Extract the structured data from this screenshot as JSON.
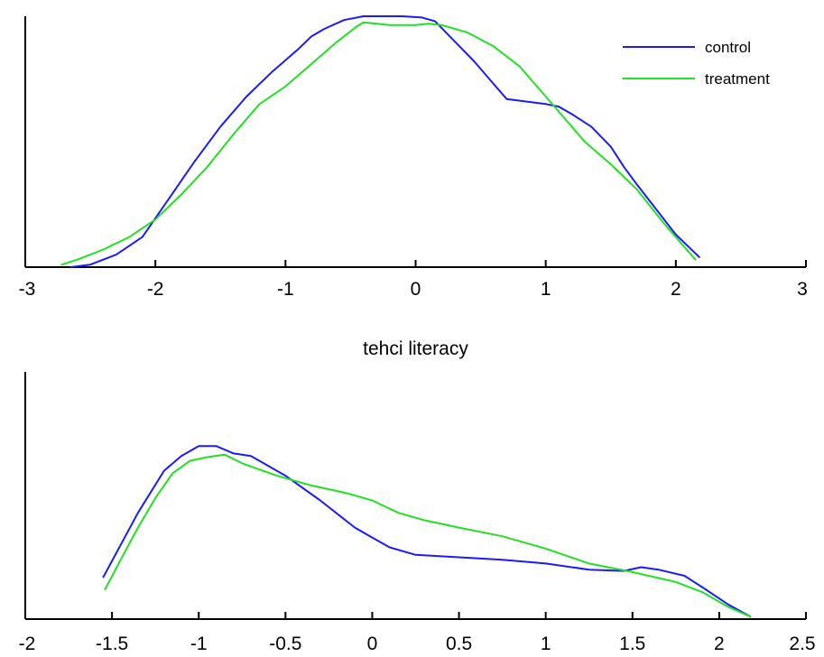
{
  "colors": {
    "control": "#1a1aff",
    "treatment": "#22e022"
  },
  "chart_data": [
    {
      "type": "line",
      "title": "",
      "xlabel": "",
      "ylabel": "",
      "xlim": [
        -3,
        3
      ],
      "ylim": [
        0,
        1
      ],
      "xticks": [
        "-3",
        "-2",
        "-1",
        "0",
        "1",
        "2",
        "3"
      ],
      "grid": false,
      "legend": {
        "position": "top-right",
        "entries": [
          "control",
          "treatment"
        ]
      },
      "series": [
        {
          "name": "control",
          "x": [
            -2.65,
            -2.5,
            -2.3,
            -2.1,
            -1.9,
            -1.7,
            -1.5,
            -1.3,
            -1.1,
            -0.9,
            -0.8,
            -0.7,
            -0.55,
            -0.4,
            -0.3,
            -0.1,
            0.05,
            0.15,
            0.3,
            0.45,
            0.6,
            0.7,
            0.85,
            1.0,
            1.1,
            1.2,
            1.35,
            1.5,
            1.6,
            1.7,
            1.85,
            2.0,
            2.1,
            2.18
          ],
          "y": [
            0.0,
            0.01,
            0.05,
            0.12,
            0.27,
            0.42,
            0.56,
            0.68,
            0.78,
            0.87,
            0.92,
            0.95,
            0.985,
            1.0,
            1.0,
            1.0,
            0.995,
            0.98,
            0.9,
            0.82,
            0.73,
            0.67,
            0.66,
            0.65,
            0.64,
            0.61,
            0.56,
            0.48,
            0.4,
            0.33,
            0.23,
            0.13,
            0.08,
            0.04
          ]
        },
        {
          "name": "treatment",
          "x": [
            -2.72,
            -2.6,
            -2.4,
            -2.2,
            -2.0,
            -1.8,
            -1.6,
            -1.4,
            -1.2,
            -1.0,
            -0.8,
            -0.6,
            -0.45,
            -0.4,
            -0.3,
            -0.2,
            0.0,
            0.1,
            0.2,
            0.4,
            0.6,
            0.8,
            0.95,
            1.1,
            1.3,
            1.5,
            1.7,
            1.9,
            2.05,
            2.15
          ],
          "y": [
            0.01,
            0.03,
            0.07,
            0.12,
            0.19,
            0.29,
            0.4,
            0.53,
            0.65,
            0.72,
            0.81,
            0.9,
            0.96,
            0.975,
            0.97,
            0.965,
            0.965,
            0.97,
            0.965,
            0.935,
            0.88,
            0.8,
            0.71,
            0.62,
            0.5,
            0.41,
            0.31,
            0.18,
            0.09,
            0.03
          ]
        }
      ]
    },
    {
      "type": "line",
      "title": "tehci literacy",
      "xlabel": "",
      "ylabel": "",
      "xlim": [
        -2,
        2.5
      ],
      "ylim": [
        0,
        1
      ],
      "xticks": [
        "-2",
        "-1.5",
        "-1",
        "-0.5",
        "0",
        "0.5",
        "1",
        "1.5",
        "2",
        "2.5"
      ],
      "grid": false,
      "legend": null,
      "series": [
        {
          "name": "control",
          "x": [
            -1.55,
            -1.45,
            -1.35,
            -1.2,
            -1.1,
            -1.0,
            -0.9,
            -0.8,
            -0.7,
            -0.5,
            -0.3,
            -0.1,
            0.0,
            0.1,
            0.25,
            0.5,
            0.75,
            1.0,
            1.25,
            1.45,
            1.55,
            1.65,
            1.8,
            1.9,
            2.05,
            2.18
          ],
          "y": [
            0.17,
            0.3,
            0.43,
            0.6,
            0.66,
            0.7,
            0.7,
            0.67,
            0.66,
            0.58,
            0.48,
            0.37,
            0.33,
            0.29,
            0.26,
            0.25,
            0.24,
            0.225,
            0.2,
            0.195,
            0.21,
            0.2,
            0.175,
            0.13,
            0.06,
            0.01
          ]
        },
        {
          "name": "treatment",
          "x": [
            -1.54,
            -1.45,
            -1.35,
            -1.25,
            -1.15,
            -1.05,
            -0.95,
            -0.85,
            -0.75,
            -0.55,
            -0.35,
            -0.15,
            0.0,
            0.15,
            0.3,
            0.5,
            0.75,
            1.0,
            1.25,
            1.5,
            1.75,
            1.9,
            2.05,
            2.18
          ],
          "y": [
            0.12,
            0.24,
            0.37,
            0.49,
            0.59,
            0.64,
            0.655,
            0.665,
            0.63,
            0.58,
            0.54,
            0.51,
            0.48,
            0.43,
            0.4,
            0.37,
            0.335,
            0.285,
            0.225,
            0.19,
            0.15,
            0.11,
            0.05,
            0.01
          ]
        }
      ]
    }
  ]
}
